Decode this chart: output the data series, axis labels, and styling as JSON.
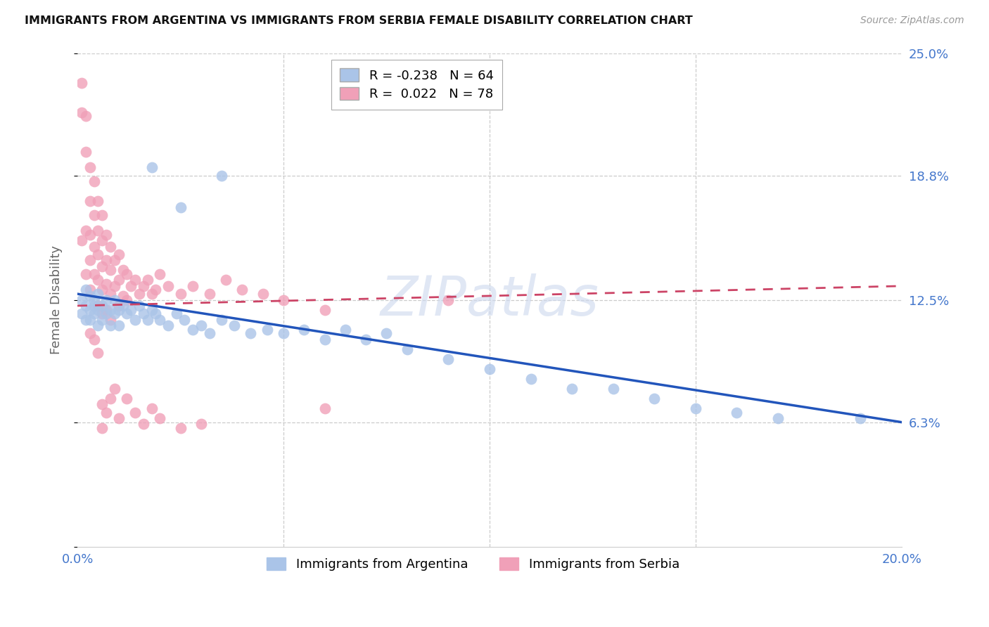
{
  "title": "IMMIGRANTS FROM ARGENTINA VS IMMIGRANTS FROM SERBIA FEMALE DISABILITY CORRELATION CHART",
  "source": "Source: ZipAtlas.com",
  "ylabel": "Female Disability",
  "xlim": [
    0.0,
    0.2
  ],
  "ylim": [
    0.0,
    0.25
  ],
  "argentina_color": "#aac4e8",
  "serbia_color": "#f0a0b8",
  "argentina_line_color": "#2255bb",
  "serbia_line_color": "#cc4466",
  "R_argentina": -0.238,
  "N_argentina": 64,
  "R_serbia": 0.022,
  "N_serbia": 78,
  "arg_line_x0": 0.0,
  "arg_line_y0": 0.128,
  "arg_line_x1": 0.2,
  "arg_line_y1": 0.063,
  "serb_line_x0": 0.0,
  "serb_line_y0": 0.122,
  "serb_line_x1": 0.2,
  "serb_line_y1": 0.132,
  "argentina_x": [
    0.001,
    0.001,
    0.002,
    0.002,
    0.002,
    0.003,
    0.003,
    0.003,
    0.004,
    0.004,
    0.004,
    0.005,
    0.005,
    0.005,
    0.006,
    0.006,
    0.007,
    0.007,
    0.008,
    0.008,
    0.009,
    0.009,
    0.01,
    0.01,
    0.011,
    0.012,
    0.013,
    0.014,
    0.015,
    0.016,
    0.017,
    0.018,
    0.019,
    0.02,
    0.022,
    0.024,
    0.026,
    0.028,
    0.03,
    0.032,
    0.035,
    0.038,
    0.042,
    0.046,
    0.05,
    0.055,
    0.06,
    0.065,
    0.07,
    0.075,
    0.08,
    0.09,
    0.1,
    0.11,
    0.12,
    0.13,
    0.14,
    0.15,
    0.16,
    0.17,
    0.018,
    0.025,
    0.035,
    0.19
  ],
  "argentina_y": [
    0.125,
    0.118,
    0.122,
    0.115,
    0.13,
    0.12,
    0.127,
    0.115,
    0.122,
    0.118,
    0.125,
    0.112,
    0.12,
    0.128,
    0.115,
    0.122,
    0.118,
    0.125,
    0.112,
    0.12,
    0.118,
    0.125,
    0.112,
    0.12,
    0.122,
    0.118,
    0.12,
    0.115,
    0.122,
    0.118,
    0.115,
    0.12,
    0.118,
    0.115,
    0.112,
    0.118,
    0.115,
    0.11,
    0.112,
    0.108,
    0.115,
    0.112,
    0.108,
    0.11,
    0.108,
    0.11,
    0.105,
    0.11,
    0.105,
    0.108,
    0.1,
    0.095,
    0.09,
    0.085,
    0.08,
    0.08,
    0.075,
    0.07,
    0.068,
    0.065,
    0.192,
    0.172,
    0.188,
    0.065
  ],
  "serbia_x": [
    0.001,
    0.001,
    0.001,
    0.002,
    0.002,
    0.002,
    0.002,
    0.003,
    0.003,
    0.003,
    0.003,
    0.003,
    0.004,
    0.004,
    0.004,
    0.004,
    0.005,
    0.005,
    0.005,
    0.005,
    0.005,
    0.006,
    0.006,
    0.006,
    0.006,
    0.006,
    0.007,
    0.007,
    0.007,
    0.007,
    0.008,
    0.008,
    0.008,
    0.008,
    0.009,
    0.009,
    0.01,
    0.01,
    0.01,
    0.011,
    0.011,
    0.012,
    0.012,
    0.013,
    0.014,
    0.015,
    0.016,
    0.017,
    0.018,
    0.019,
    0.02,
    0.022,
    0.025,
    0.028,
    0.032,
    0.036,
    0.04,
    0.045,
    0.05,
    0.06,
    0.003,
    0.004,
    0.005,
    0.006,
    0.006,
    0.007,
    0.008,
    0.009,
    0.01,
    0.012,
    0.014,
    0.016,
    0.018,
    0.02,
    0.025,
    0.03,
    0.06,
    0.09
  ],
  "serbia_y": [
    0.235,
    0.22,
    0.155,
    0.218,
    0.2,
    0.16,
    0.138,
    0.192,
    0.175,
    0.158,
    0.145,
    0.13,
    0.185,
    0.168,
    0.152,
    0.138,
    0.175,
    0.16,
    0.148,
    0.135,
    0.122,
    0.168,
    0.155,
    0.142,
    0.13,
    0.118,
    0.158,
    0.145,
    0.133,
    0.12,
    0.152,
    0.14,
    0.128,
    0.115,
    0.145,
    0.132,
    0.148,
    0.135,
    0.122,
    0.14,
    0.127,
    0.138,
    0.125,
    0.132,
    0.135,
    0.128,
    0.132,
    0.135,
    0.128,
    0.13,
    0.138,
    0.132,
    0.128,
    0.132,
    0.128,
    0.135,
    0.13,
    0.128,
    0.125,
    0.12,
    0.108,
    0.105,
    0.098,
    0.072,
    0.06,
    0.068,
    0.075,
    0.08,
    0.065,
    0.075,
    0.068,
    0.062,
    0.07,
    0.065,
    0.06,
    0.062,
    0.07,
    0.125
  ]
}
